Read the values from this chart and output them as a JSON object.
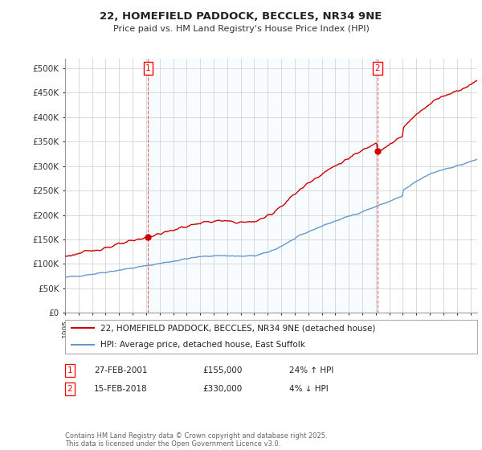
{
  "title": "22, HOMEFIELD PADDOCK, BECCLES, NR34 9NE",
  "subtitle": "Price paid vs. HM Land Registry's House Price Index (HPI)",
  "ylabel_ticks": [
    "£0",
    "£50K",
    "£100K",
    "£150K",
    "£200K",
    "£250K",
    "£300K",
    "£350K",
    "£400K",
    "£450K",
    "£500K"
  ],
  "ytick_values": [
    0,
    50000,
    100000,
    150000,
    200000,
    250000,
    300000,
    350000,
    400000,
    450000,
    500000
  ],
  "ylim": [
    0,
    520000
  ],
  "xlim_start": 1995.0,
  "xlim_end": 2025.5,
  "legend_line1": "22, HOMEFIELD PADDOCK, BECCLES, NR34 9NE (detached house)",
  "legend_line2": "HPI: Average price, detached house, East Suffolk",
  "sale1_label": "1",
  "sale1_date": "27-FEB-2001",
  "sale1_price": "£155,000",
  "sale1_hpi": "24% ↑ HPI",
  "sale2_label": "2",
  "sale2_date": "15-FEB-2018",
  "sale2_price": "£330,000",
  "sale2_hpi": "4% ↓ HPI",
  "footer": "Contains HM Land Registry data © Crown copyright and database right 2025.\nThis data is licensed under the Open Government Licence v3.0.",
  "sale1_x": 2001.15,
  "sale1_y": 155000,
  "sale2_x": 2018.12,
  "sale2_y": 330000,
  "line_color_red": "#cc0000",
  "line_color_blue": "#6699cc",
  "shade_color": "#ddeeff",
  "bg_color": "#ffffff",
  "grid_color": "#cccccc"
}
